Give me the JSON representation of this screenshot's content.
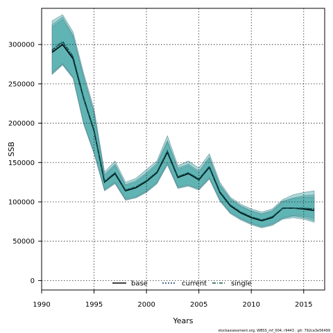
{
  "chart_data": {
    "type": "line",
    "xlabel": "Years",
    "ylabel": "SSB",
    "xlim": [
      1990,
      2017
    ],
    "ylim": [
      -12000,
      346000
    ],
    "xticks": [
      1990,
      1995,
      2000,
      2005,
      2010,
      2015
    ],
    "yticks": [
      0,
      50000,
      100000,
      150000,
      200000,
      250000,
      300000
    ],
    "grid": true,
    "legend_position": "bottom-center",
    "legend": [
      "base",
      "current",
      "single"
    ],
    "x": [
      1991,
      1992,
      1993,
      1994,
      1995,
      1996,
      1997,
      1998,
      1999,
      2000,
      2001,
      2002,
      2003,
      2004,
      2005,
      2006,
      2007,
      2008,
      2009,
      2010,
      2011,
      2012,
      2013,
      2014,
      2015,
      2016
    ],
    "series": [
      {
        "name": "base",
        "style": "solid",
        "values": [
          290000,
          300000,
          282000,
          232000,
          190000,
          125000,
          136000,
          114000,
          118000,
          126000,
          137000,
          163000,
          131000,
          136000,
          128000,
          144000,
          112000,
          95000,
          86000,
          80000,
          76000,
          80000,
          92000,
          92000,
          91000,
          89000
        ],
        "band_lower": [
          263000,
          275000,
          258000,
          200000,
          162000,
          115000,
          124000,
          103000,
          106000,
          113000,
          124000,
          148000,
          118000,
          121000,
          116000,
          130000,
          102000,
          86000,
          78000,
          72000,
          68000,
          71000,
          79000,
          82000,
          80000,
          76000
        ],
        "band_upper": [
          325000,
          335000,
          312000,
          260000,
          214000,
          135000,
          148000,
          122000,
          127000,
          137000,
          149000,
          178000,
          143000,
          148000,
          139000,
          157000,
          122000,
          104000,
          95000,
          89000,
          85000,
          89000,
          101000,
          105000,
          108000,
          109000
        ]
      },
      {
        "name": "current",
        "style": "dotted",
        "values": [
          292000,
          303000,
          284000,
          233000,
          191000,
          126000,
          137000,
          115000,
          119000,
          127000,
          138000,
          164000,
          132000,
          137000,
          129000,
          145000,
          113000,
          96000,
          87000,
          81000,
          77000,
          81000,
          92000,
          92000,
          92000,
          91000
        ],
        "band_lower": [
          262000,
          274000,
          257000,
          199000,
          161000,
          114000,
          123000,
          102000,
          105000,
          112000,
          123000,
          147000,
          117000,
          120000,
          115000,
          129000,
          101000,
          85000,
          77000,
          71000,
          67000,
          70000,
          78000,
          80000,
          78000,
          74000
        ],
        "band_upper": [
          330000,
          338000,
          316000,
          264000,
          218000,
          138000,
          152000,
          125000,
          130000,
          141000,
          152000,
          184000,
          146000,
          152000,
          143000,
          161000,
          125000,
          106000,
          97000,
          91000,
          87000,
          91000,
          103000,
          109000,
          112000,
          114000
        ]
      },
      {
        "name": "single",
        "style": "dashdot",
        "values": [
          293000,
          304000,
          285000,
          233000,
          191000,
          126000,
          137000,
          115000,
          119000,
          127000,
          138000,
          165000,
          132000,
          137000,
          129000,
          145000,
          113000,
          96000,
          87000,
          81000,
          77000,
          81000,
          92000,
          92000,
          92000,
          91000
        ],
        "band_lower": [
          264000,
          276000,
          259000,
          201000,
          163000,
          116000,
          125000,
          104000,
          107000,
          114000,
          125000,
          150000,
          119000,
          122000,
          117000,
          131000,
          103000,
          87000,
          79000,
          73000,
          69000,
          72000,
          80000,
          83000,
          82000,
          79000
        ],
        "band_upper": [
          322000,
          332000,
          310000,
          258000,
          212000,
          133000,
          146000,
          121000,
          125000,
          135000,
          147000,
          176000,
          141000,
          146000,
          137000,
          155000,
          121000,
          103000,
          94000,
          88000,
          84000,
          88000,
          100000,
          104000,
          106000,
          106000
        ]
      }
    ],
    "colors": {
      "band_fill": "#3aa3a1",
      "line_base": "#000000",
      "line_current": "#0b3a6e",
      "line_single": "#0f5a4a",
      "grid": "#222222"
    },
    "footer": "stockassessment.org, WBSS_mf_004, r9443 , git: 792ca3e56499"
  }
}
